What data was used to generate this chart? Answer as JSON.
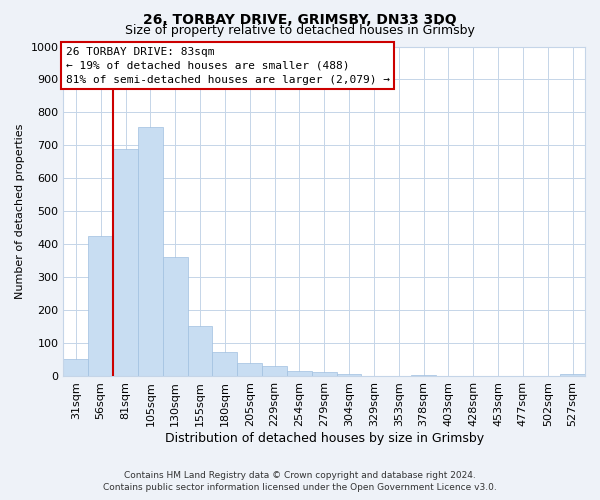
{
  "title": "26, TORBAY DRIVE, GRIMSBY, DN33 3DQ",
  "subtitle": "Size of property relative to detached houses in Grimsby",
  "xlabel": "Distribution of detached houses by size in Grimsby",
  "ylabel": "Number of detached properties",
  "bar_labels": [
    "31sqm",
    "56sqm",
    "81sqm",
    "105sqm",
    "130sqm",
    "155sqm",
    "180sqm",
    "205sqm",
    "229sqm",
    "254sqm",
    "279sqm",
    "304sqm",
    "329sqm",
    "353sqm",
    "378sqm",
    "403sqm",
    "428sqm",
    "453sqm",
    "477sqm",
    "502sqm",
    "527sqm"
  ],
  "bar_values": [
    52,
    425,
    688,
    757,
    362,
    152,
    75,
    40,
    32,
    18,
    12,
    8,
    0,
    0,
    5,
    0,
    0,
    0,
    0,
    0,
    8
  ],
  "bar_color": "#c8ddf2",
  "bar_edge_color": "#a0c0e0",
  "highlight_line_color": "#cc0000",
  "highlight_line_index": 2,
  "ylim": [
    0,
    1000
  ],
  "yticks": [
    0,
    100,
    200,
    300,
    400,
    500,
    600,
    700,
    800,
    900,
    1000
  ],
  "annotation_title": "26 TORBAY DRIVE: 83sqm",
  "annotation_line1": "← 19% of detached houses are smaller (488)",
  "annotation_line2": "81% of semi-detached houses are larger (2,079) →",
  "annotation_box_color": "#ffffff",
  "annotation_box_edge": "#cc0000",
  "footer_line1": "Contains HM Land Registry data © Crown copyright and database right 2024.",
  "footer_line2": "Contains public sector information licensed under the Open Government Licence v3.0.",
  "background_color": "#eef2f8",
  "plot_background_color": "#ffffff",
  "grid_color": "#c5d5e8"
}
